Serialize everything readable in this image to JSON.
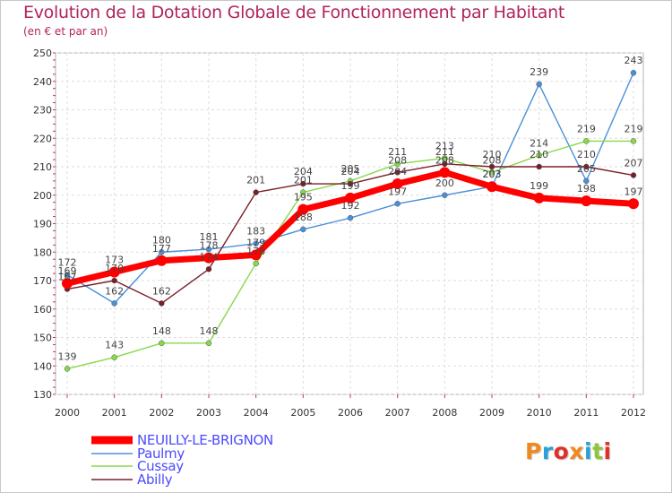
{
  "chart_data": {
    "type": "line",
    "title": "Evolution de la Dotation Globale de Fonctionnement par Habitant",
    "subtitle": "(en € et par an)",
    "x": [
      "2000",
      "2001",
      "2002",
      "2003",
      "2004",
      "2005",
      "2006",
      "2007",
      "2008",
      "2009",
      "2010",
      "2011",
      "2012"
    ],
    "ylim": [
      130,
      250
    ],
    "yticks": [
      130,
      140,
      150,
      160,
      170,
      180,
      190,
      200,
      210,
      220,
      230,
      240,
      250
    ],
    "grid": true,
    "series": [
      {
        "name": "NEUILLY-LE-BRIGNON",
        "color": "#ff0000",
        "values": [
          169,
          173,
          177,
          178,
          179,
          195,
          199,
          204,
          208,
          203,
          199,
          198,
          197
        ]
      },
      {
        "name": "Paulmy",
        "color": "#4a90d9",
        "values": [
          172,
          162,
          180,
          181,
          183,
          188,
          192,
          197,
          200,
          203,
          239,
          205,
          243
        ]
      },
      {
        "name": "Cussay",
        "color": "#86d94a",
        "values": [
          139,
          143,
          148,
          148,
          176,
          201,
          205,
          211,
          213,
          208,
          214,
          219,
          219
        ]
      },
      {
        "name": "Abilly",
        "color": "#7a1f2a",
        "values": [
          167,
          170,
          162,
          174,
          201,
          204,
          204,
          208,
          211,
          210,
          210,
          210,
          207
        ]
      }
    ]
  },
  "legend": {
    "items": [
      {
        "label": "NEUILLY-LE-BRIGNON",
        "color": "#ff0000"
      },
      {
        "label": "Paulmy",
        "color": "#4a90d9"
      },
      {
        "label": "Cussay",
        "color": "#86d94a"
      },
      {
        "label": "Abilly",
        "color": "#7a1f2a"
      }
    ]
  },
  "logo": {
    "text": "Proxiti",
    "colors": [
      "#f08a1c",
      "#2aa0d8",
      "#e0302a",
      "#f08a1c",
      "#2aa0d8",
      "#8cc63f",
      "#e0302a"
    ]
  }
}
